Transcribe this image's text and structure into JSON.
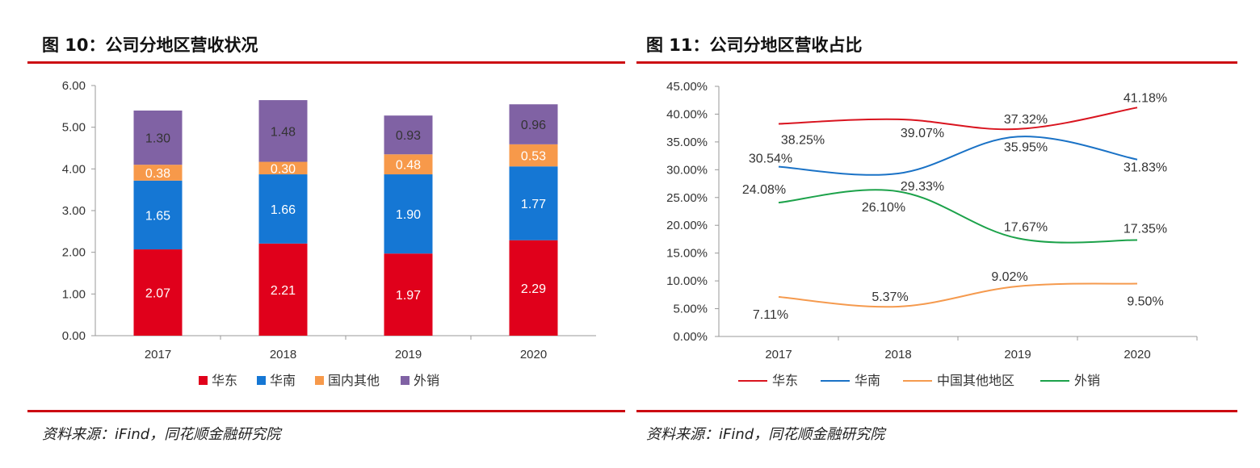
{
  "figures": [
    {
      "title": "图 10：公司分地区营收状况",
      "source": "资料来源：iFind，同花顺金融研究院"
    },
    {
      "title": "图 11：公司分地区营收占比",
      "source": "资料来源：iFind，同花顺金融研究院"
    }
  ],
  "chart_data": [
    {
      "type": "bar",
      "stacked": true,
      "title": "",
      "xlabel": "",
      "ylabel": "",
      "categories": [
        "2017",
        "2018",
        "2019",
        "2020"
      ],
      "ylim": [
        0,
        6
      ],
      "yticks": [
        "0.00",
        "1.00",
        "2.00",
        "3.00",
        "4.00",
        "5.00",
        "6.00"
      ],
      "grid": false,
      "legend_position": "bottom",
      "series": [
        {
          "name": "华东",
          "values": [
            2.07,
            2.21,
            1.97,
            2.29
          ],
          "labels": [
            "2.07",
            "2.21",
            "1.97",
            "2.29"
          ],
          "color": "#e0001b",
          "label_color": "#ffffff"
        },
        {
          "name": "华南",
          "values": [
            1.65,
            1.66,
            1.9,
            1.77
          ],
          "labels": [
            "1.65",
            "1.66",
            "1.90",
            "1.77"
          ],
          "color": "#1577d4",
          "label_color": "#ffffff"
        },
        {
          "name": "国内其他",
          "values": [
            0.38,
            0.3,
            0.48,
            0.53
          ],
          "labels": [
            "0.38",
            "0.30",
            "0.48",
            "0.53"
          ],
          "color": "#f7994a",
          "label_color": "#ffffff"
        },
        {
          "name": "外销",
          "values": [
            1.3,
            1.48,
            0.93,
            0.96
          ],
          "labels": [
            "1.30",
            "1.48",
            "0.93",
            "0.96"
          ],
          "color": "#8062a4",
          "label_color": "#333333"
        }
      ]
    },
    {
      "type": "line",
      "smooth": true,
      "title": "",
      "xlabel": "",
      "ylabel": "",
      "categories": [
        "2017",
        "2018",
        "2019",
        "2020"
      ],
      "ylim": [
        0,
        45
      ],
      "yticks": [
        "0.00%",
        "5.00%",
        "10.00%",
        "15.00%",
        "20.00%",
        "25.00%",
        "30.00%",
        "35.00%",
        "40.00%",
        "45.00%"
      ],
      "grid": false,
      "legend_position": "bottom",
      "series": [
        {
          "name": "华东",
          "values": [
            38.25,
            39.07,
            37.32,
            41.18
          ],
          "labels": [
            "38.25%",
            "39.07%",
            "37.32%",
            "41.18%"
          ],
          "color": "#d9141f"
        },
        {
          "name": "华南",
          "values": [
            30.54,
            29.33,
            35.95,
            31.83
          ],
          "labels": [
            "30.54%",
            "29.33%",
            "35.95%",
            "31.83%"
          ],
          "color": "#1a72c6"
        },
        {
          "name": "中国其他地区",
          "values": [
            7.11,
            5.37,
            9.02,
            9.5
          ],
          "labels": [
            "7.11%",
            "5.37%",
            "9.02%",
            "9.50%"
          ],
          "color": "#f59a4e"
        },
        {
          "name": "外销",
          "values": [
            24.08,
            26.1,
            17.67,
            17.35
          ],
          "labels": [
            "24.08%",
            "26.10%",
            "17.67%",
            "17.35%"
          ],
          "color": "#1ca24a"
        }
      ]
    }
  ]
}
